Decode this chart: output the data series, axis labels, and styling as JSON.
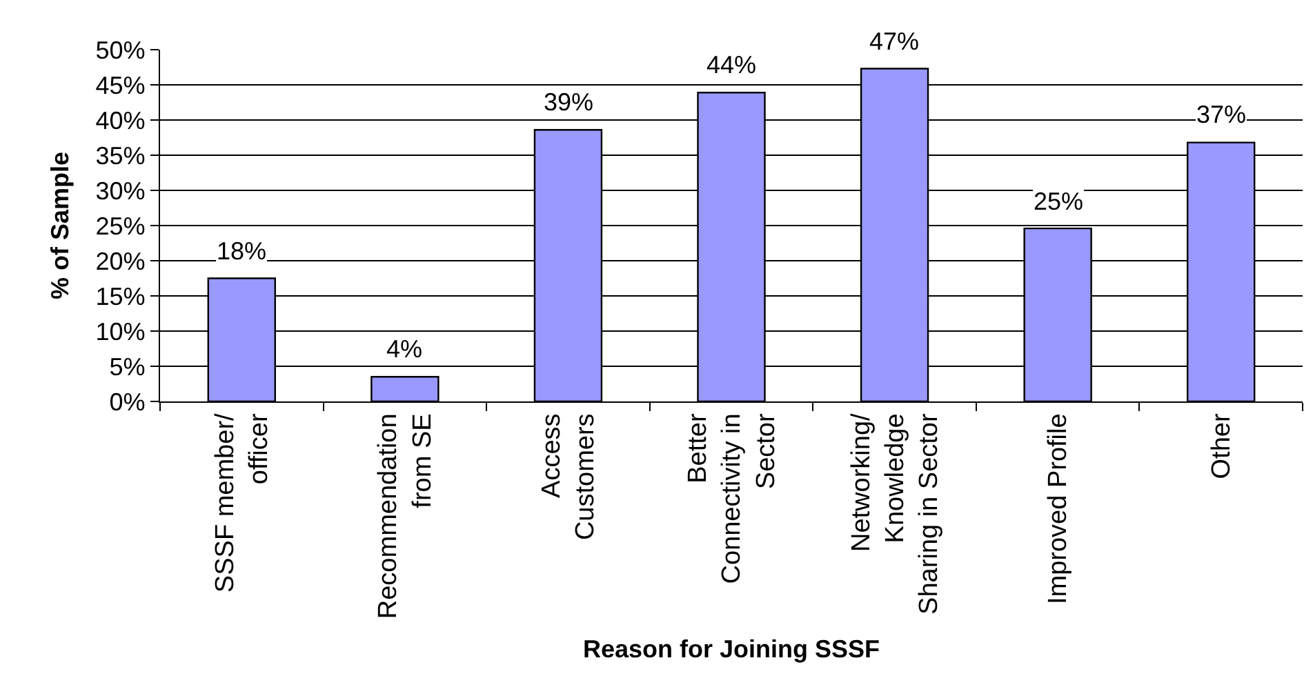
{
  "chart_data": {
    "type": "bar",
    "xlabel": "Reason for Joining SSSF",
    "ylabel": "% of Sample",
    "categories": [
      "SSSF member/\nofficer",
      "Recommendation\nfrom SE",
      "Access\nCustomers",
      "Better\nConnectivity in\nSector",
      "Networking/\nKnowledge\nSharing in Sector",
      "Improved Profile",
      "Other"
    ],
    "values": [
      17.5,
      3.5,
      38.6,
      43.9,
      47.3,
      24.6,
      36.8
    ],
    "value_labels": [
      "18%",
      "4%",
      "39%",
      "44%",
      "47%",
      "25%",
      "37%"
    ],
    "color": "#9999ff",
    "ylim": [
      0,
      50
    ],
    "yticks": [
      {
        "value": 0,
        "label": "0%"
      },
      {
        "value": 5,
        "label": "5%"
      },
      {
        "value": 10,
        "label": "10%"
      },
      {
        "value": 15,
        "label": "15%"
      },
      {
        "value": 20,
        "label": "20%"
      },
      {
        "value": 25,
        "label": "25%"
      },
      {
        "value": 30,
        "label": "30%"
      },
      {
        "value": 35,
        "label": "35%"
      },
      {
        "value": 40,
        "label": "40%"
      },
      {
        "value": 45,
        "label": "45%"
      },
      {
        "value": 50,
        "label": "50%"
      }
    ],
    "grid": "y"
  }
}
